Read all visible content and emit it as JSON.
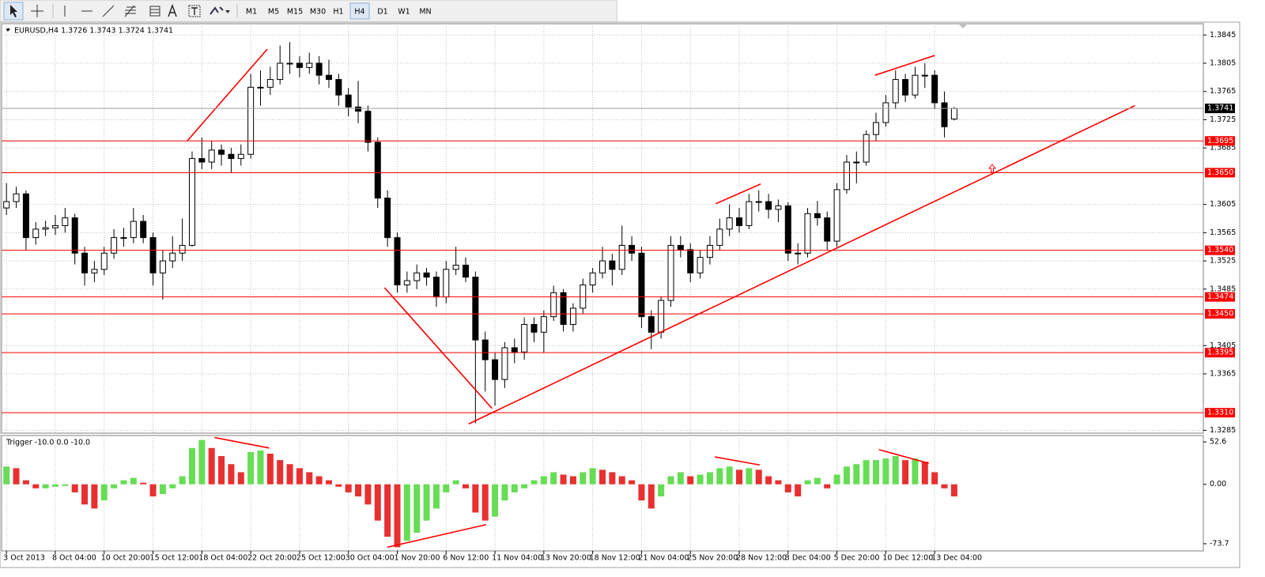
{
  "toolbar": {
    "timeframes": [
      "M1",
      "M5",
      "M15",
      "M30",
      "H1",
      "H4",
      "D1",
      "W1",
      "MN"
    ],
    "active": 5
  },
  "chart_data": [
    {
      "type": "candlestick",
      "title": "EURUSD,H4 1.3726 1.3743 1.3724 1.3741",
      "xlim": [
        -0.5,
        122.5
      ],
      "xticks": [
        {
          "value": 0,
          "label": "3 Oct 2013"
        },
        {
          "value": 5,
          "label": "8 Oct 04:00"
        },
        {
          "value": 10,
          "label": "10 Oct 20:00"
        },
        {
          "value": 15,
          "label": "15 Oct 12:00"
        },
        {
          "value": 20,
          "label": "18 Oct 04:00"
        },
        {
          "value": 25,
          "label": "22 Oct 20:00"
        },
        {
          "value": 30,
          "label": "25 Oct 12:00"
        },
        {
          "value": 35,
          "label": "30 Oct 04:00"
        },
        {
          "value": 40,
          "label": "1 Nov 20:00"
        },
        {
          "value": 45,
          "label": "6 Nov 12:00"
        },
        {
          "value": 50,
          "label": "11 Nov 04:00"
        },
        {
          "value": 55,
          "label": "13 Nov 20:00"
        },
        {
          "value": 60,
          "label": "18 Nov 12:00"
        },
        {
          "value": 65,
          "label": "21 Nov 04:00"
        },
        {
          "value": 70,
          "label": "25 Nov 20:00"
        },
        {
          "value": 75,
          "label": "28 Nov 12:00"
        },
        {
          "value": 80,
          "label": "3 Dec 04:00"
        },
        {
          "value": 85,
          "label": "5 Dec 20:00"
        },
        {
          "value": 90,
          "label": "10 Dec 12:00"
        },
        {
          "value": 95,
          "label": "13 Dec 04:00"
        }
      ],
      "ylim": [
        1.3281,
        1.3861
      ],
      "yticks": [
        1.3845,
        1.3805,
        1.3765,
        1.3725,
        1.3685,
        1.3605,
        1.3565,
        1.3525,
        1.3485,
        1.3405,
        1.3365,
        1.3285
      ],
      "grid": true,
      "up_color": "#ffffff",
      "down_color": "#000000",
      "wick_color": "#000000",
      "line_color": "#ff0000",
      "current_price": 1.3741,
      "hlines": [
        {
          "value": 1.3695,
          "label": "1.3695"
        },
        {
          "value": 1.365,
          "label": "1.3650"
        },
        {
          "value": 1.354,
          "label": "1.3540"
        },
        {
          "value": 1.3474,
          "label": "1.3474"
        },
        {
          "value": 1.345,
          "label": "1.3450"
        },
        {
          "value": 1.3395,
          "label": "1.3395"
        },
        {
          "value": 1.331,
          "label": "1.3310"
        }
      ],
      "trendlines": [
        {
          "x": [
            18.5,
            26.7
          ],
          "y": [
            1.3695,
            1.3825
          ]
        },
        {
          "x": [
            38.7,
            49.7
          ],
          "y": [
            1.3487,
            1.3316
          ]
        },
        {
          "x": [
            47.3,
            115.5
          ],
          "y": [
            1.3294,
            1.3745
          ]
        },
        {
          "x": [
            72.6,
            77.2
          ],
          "y": [
            1.3606,
            1.3634
          ]
        },
        {
          "x": [
            88.9,
            95.0
          ],
          "y": [
            1.3788,
            1.3816
          ]
        }
      ],
      "ohlc": [
        [
          1.36,
          1.3635,
          1.359,
          1.3609
        ],
        [
          1.3609,
          1.363,
          1.36,
          1.362
        ],
        [
          1.362,
          1.3625,
          1.354,
          1.3558
        ],
        [
          1.3558,
          1.358,
          1.3548,
          1.357
        ],
        [
          1.357,
          1.3582,
          1.356,
          1.3572
        ],
        [
          1.3572,
          1.359,
          1.3562,
          1.3575
        ],
        [
          1.3575,
          1.36,
          1.3565,
          1.3586
        ],
        [
          1.3586,
          1.3592,
          1.352,
          1.3536
        ],
        [
          1.3536,
          1.3545,
          1.349,
          1.3508
        ],
        [
          1.3508,
          1.3525,
          1.3495,
          1.3513
        ],
        [
          1.3513,
          1.3545,
          1.3505,
          1.3536
        ],
        [
          1.3536,
          1.357,
          1.3528,
          1.3558
        ],
        [
          1.3558,
          1.3572,
          1.3545,
          1.3558
        ],
        [
          1.3558,
          1.36,
          1.355,
          1.3581
        ],
        [
          1.3581,
          1.359,
          1.355,
          1.3558
        ],
        [
          1.3558,
          1.3565,
          1.349,
          1.3508
        ],
        [
          1.3508,
          1.354,
          1.347,
          1.3525
        ],
        [
          1.3525,
          1.356,
          1.3515,
          1.3536
        ],
        [
          1.3536,
          1.3585,
          1.3525,
          1.3547
        ],
        [
          1.3547,
          1.368,
          1.3545,
          1.367
        ],
        [
          1.367,
          1.37,
          1.3655,
          1.3665
        ],
        [
          1.3665,
          1.3695,
          1.3655,
          1.3682
        ],
        [
          1.3682,
          1.369,
          1.366,
          1.3676
        ],
        [
          1.3676,
          1.3685,
          1.365,
          1.367
        ],
        [
          1.367,
          1.369,
          1.366,
          1.3676
        ],
        [
          1.3676,
          1.379,
          1.367,
          1.3771
        ],
        [
          1.3771,
          1.3795,
          1.3745,
          1.3771
        ],
        [
          1.3771,
          1.38,
          1.376,
          1.3782
        ],
        [
          1.3782,
          1.383,
          1.3775,
          1.3805
        ],
        [
          1.3805,
          1.3835,
          1.379,
          1.3805
        ],
        [
          1.3805,
          1.3815,
          1.3785,
          1.3799
        ],
        [
          1.3799,
          1.382,
          1.379,
          1.3805
        ],
        [
          1.3805,
          1.3815,
          1.3775,
          1.3788
        ],
        [
          1.3788,
          1.381,
          1.377,
          1.3782
        ],
        [
          1.3782,
          1.379,
          1.3745,
          1.376
        ],
        [
          1.376,
          1.377,
          1.373,
          1.3743
        ],
        [
          1.3743,
          1.378,
          1.372,
          1.3737
        ],
        [
          1.3737,
          1.3745,
          1.368,
          1.3693
        ],
        [
          1.3693,
          1.37,
          1.36,
          1.3614
        ],
        [
          1.3614,
          1.3625,
          1.3545,
          1.3558
        ],
        [
          1.3558,
          1.3565,
          1.348,
          1.3491
        ],
        [
          1.3491,
          1.351,
          1.348,
          1.3497
        ],
        [
          1.3497,
          1.352,
          1.3485,
          1.3508
        ],
        [
          1.3508,
          1.3515,
          1.349,
          1.3502
        ],
        [
          1.3502,
          1.351,
          1.346,
          1.3474
        ],
        [
          1.3474,
          1.3525,
          1.3465,
          1.3513
        ],
        [
          1.3513,
          1.3545,
          1.3505,
          1.3519
        ],
        [
          1.3519,
          1.353,
          1.3495,
          1.3502
        ],
        [
          1.3502,
          1.351,
          1.3295,
          1.3413
        ],
        [
          1.3413,
          1.3425,
          1.334,
          1.3385
        ],
        [
          1.3385,
          1.3395,
          1.332,
          1.3357
        ],
        [
          1.3357,
          1.341,
          1.3345,
          1.3402
        ],
        [
          1.3402,
          1.3415,
          1.338,
          1.3396
        ],
        [
          1.3396,
          1.3445,
          1.3385,
          1.3435
        ],
        [
          1.3435,
          1.3445,
          1.341,
          1.3424
        ],
        [
          1.3424,
          1.3455,
          1.3395,
          1.3446
        ],
        [
          1.3446,
          1.349,
          1.344,
          1.348
        ],
        [
          1.348,
          1.3485,
          1.3425,
          1.3435
        ],
        [
          1.3435,
          1.3465,
          1.3425,
          1.3458
        ],
        [
          1.3458,
          1.35,
          1.345,
          1.3491
        ],
        [
          1.3491,
          1.3515,
          1.348,
          1.3508
        ],
        [
          1.3508,
          1.3545,
          1.35,
          1.3525
        ],
        [
          1.3525,
          1.3535,
          1.349,
          1.3513
        ],
        [
          1.3513,
          1.3575,
          1.3505,
          1.3547
        ],
        [
          1.3547,
          1.356,
          1.3525,
          1.3536
        ],
        [
          1.3536,
          1.3545,
          1.343,
          1.3446
        ],
        [
          1.3446,
          1.3455,
          1.34,
          1.3424
        ],
        [
          1.3424,
          1.3475,
          1.3415,
          1.3469
        ],
        [
          1.3469,
          1.356,
          1.346,
          1.3547
        ],
        [
          1.3547,
          1.356,
          1.353,
          1.3541
        ],
        [
          1.3541,
          1.355,
          1.3495,
          1.3508
        ],
        [
          1.3508,
          1.354,
          1.35,
          1.353
        ],
        [
          1.353,
          1.356,
          1.352,
          1.3547
        ],
        [
          1.3547,
          1.3585,
          1.354,
          1.357
        ],
        [
          1.357,
          1.3605,
          1.356,
          1.3586
        ],
        [
          1.3586,
          1.36,
          1.3565,
          1.3575
        ],
        [
          1.3575,
          1.362,
          1.357,
          1.3609
        ],
        [
          1.3609,
          1.3625,
          1.3595,
          1.3609
        ],
        [
          1.3609,
          1.362,
          1.3585,
          1.3598
        ],
        [
          1.3598,
          1.3612,
          1.358,
          1.3603
        ],
        [
          1.3603,
          1.3608,
          1.3525,
          1.3536
        ],
        [
          1.3536,
          1.355,
          1.352,
          1.3536
        ],
        [
          1.3536,
          1.36,
          1.353,
          1.3592
        ],
        [
          1.3592,
          1.361,
          1.3575,
          1.3586
        ],
        [
          1.3586,
          1.3595,
          1.354,
          1.3553
        ],
        [
          1.3553,
          1.3635,
          1.3545,
          1.3626
        ],
        [
          1.3626,
          1.3675,
          1.362,
          1.3665
        ],
        [
          1.3665,
          1.368,
          1.3635,
          1.3665
        ],
        [
          1.3665,
          1.371,
          1.366,
          1.3704
        ],
        [
          1.3704,
          1.3735,
          1.3695,
          1.3721
        ],
        [
          1.3721,
          1.376,
          1.3715,
          1.3749
        ],
        [
          1.3749,
          1.3795,
          1.374,
          1.3782
        ],
        [
          1.3782,
          1.379,
          1.375,
          1.376
        ],
        [
          1.376,
          1.38,
          1.3755,
          1.3788
        ],
        [
          1.3788,
          1.3805,
          1.377,
          1.3788
        ],
        [
          1.3788,
          1.3795,
          1.374,
          1.3749
        ],
        [
          1.3749,
          1.3765,
          1.37,
          1.3715
        ],
        [
          1.3726,
          1.3743,
          1.3724,
          1.3741
        ]
      ]
    },
    {
      "type": "histogram",
      "title": "Trigger -10.0 0.0 -10.0",
      "ylim": [
        -82.6,
        60.5
      ],
      "yticks": [
        52.6,
        {
          "value": 0,
          "label": "0.00"
        },
        -73.7
      ],
      "up_color": "#66dd55",
      "down_color": "#e83030",
      "line_color": "#ff0000",
      "values": [
        22,
        20,
        5,
        -5,
        -5,
        -3,
        -2,
        -10,
        -25,
        -30,
        -20,
        -5,
        5,
        8,
        2,
        -15,
        -12,
        -5,
        10,
        45,
        55,
        45,
        35,
        25,
        15,
        40,
        42,
        38,
        30,
        25,
        20,
        15,
        10,
        5,
        -3,
        -10,
        -15,
        -25,
        -45,
        -65,
        -78,
        -70,
        -60,
        -45,
        -30,
        -10,
        5,
        -5,
        -35,
        -45,
        -40,
        -20,
        -10,
        -5,
        5,
        10,
        15,
        12,
        10,
        15,
        20,
        18,
        15,
        10,
        5,
        -20,
        -30,
        -15,
        10,
        15,
        10,
        12,
        15,
        20,
        22,
        18,
        20,
        18,
        10,
        5,
        -10,
        -15,
        5,
        8,
        -5,
        12,
        22,
        25,
        30,
        30,
        32,
        35,
        30,
        32,
        28,
        15,
        -5,
        -15
      ],
      "trendlines": [
        {
          "x": [
            21.3,
            26.9
          ],
          "y": [
            58,
            45
          ]
        },
        {
          "x": [
            39.0,
            49.1
          ],
          "y": [
            -78,
            -50
          ]
        },
        {
          "x": [
            72.5,
            77.1
          ],
          "y": [
            34,
            24
          ]
        },
        {
          "x": [
            89.3,
            94.4
          ],
          "y": [
            43,
            26
          ]
        }
      ]
    }
  ]
}
